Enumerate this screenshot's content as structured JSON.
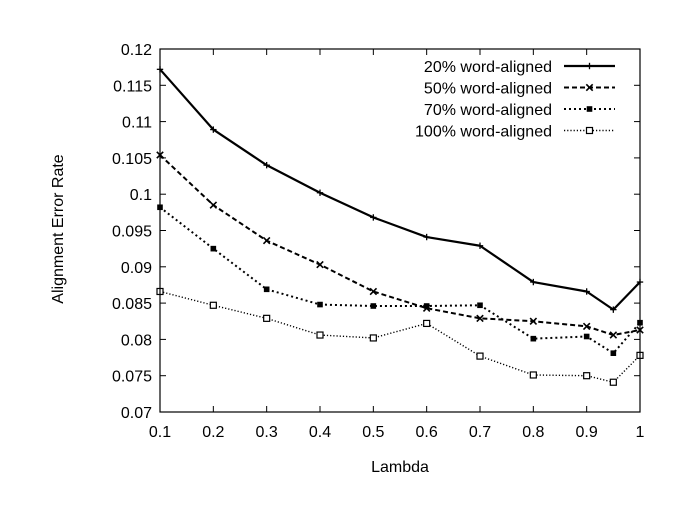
{
  "chart_data": {
    "type": "line",
    "xlabel": "Lambda",
    "ylabel": "Alignment Error Rate",
    "xlim": [
      0.1,
      1.0
    ],
    "ylim": [
      0.07,
      0.12
    ],
    "xticks": [
      "0.1",
      "0.2",
      "0.3",
      "0.4",
      "0.5",
      "0.6",
      "0.7",
      "0.8",
      "0.9",
      "1"
    ],
    "xtick_values": [
      0.1,
      0.2,
      0.3,
      0.4,
      0.5,
      0.6,
      0.7,
      0.8,
      0.9,
      1.0
    ],
    "yticks": [
      "0.07",
      "0.075",
      "0.08",
      "0.085",
      "0.09",
      "0.095",
      "0.1",
      "0.105",
      "0.11",
      "0.115",
      "0.12"
    ],
    "ytick_values": [
      0.07,
      0.075,
      0.08,
      0.085,
      0.09,
      0.095,
      0.1,
      0.105,
      0.11,
      0.115,
      0.12
    ],
    "grid": false,
    "legend_position": "top-right",
    "x": [
      0.1,
      0.2,
      0.3,
      0.4,
      0.5,
      0.6,
      0.7,
      0.8,
      0.9,
      0.95,
      1.0
    ],
    "series": [
      {
        "name": "20% word-aligned",
        "line_style": "solid",
        "marker": "plus",
        "values": [
          0.1172,
          0.1089,
          0.104,
          0.1002,
          0.0968,
          0.0941,
          0.0929,
          0.0879,
          0.0866,
          0.0841,
          0.0879
        ]
      },
      {
        "name": "50% word-aligned",
        "line_style": "dashed",
        "marker": "cross",
        "values": [
          0.1054,
          0.0985,
          0.0936,
          0.0903,
          0.0866,
          0.0843,
          0.0829,
          0.0825,
          0.0818,
          0.0806,
          0.0813
        ]
      },
      {
        "name": "70% word-aligned",
        "line_style": "dotted",
        "marker": "filled-square",
        "values": [
          0.0982,
          0.0925,
          0.0869,
          0.0848,
          0.0846,
          0.0846,
          0.0847,
          0.0801,
          0.0804,
          0.0781,
          0.0823
        ]
      },
      {
        "name": "100% word-aligned",
        "line_style": "fine-dotted",
        "marker": "open-square",
        "values": [
          0.0866,
          0.0847,
          0.0829,
          0.0806,
          0.0802,
          0.0822,
          0.0777,
          0.0751,
          0.075,
          0.0741,
          0.0778
        ]
      }
    ]
  }
}
